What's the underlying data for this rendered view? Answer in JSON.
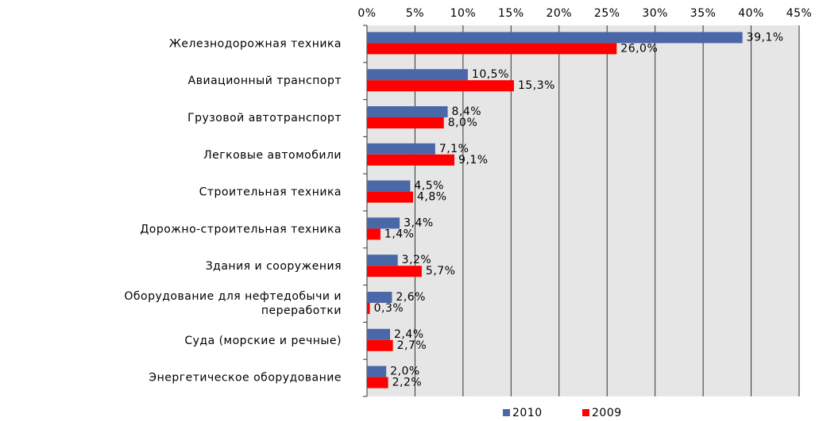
{
  "chart_data": {
    "type": "hbar",
    "categories": [
      "Железнодорожная техника",
      "Авиационный транспорт",
      "Грузовой автотранспорт",
      "Легковые автомобили",
      "Строительная техника",
      "Дорожно-строительная техника",
      "Здания и сооружения",
      "Оборудование для нефтедобычи и\nпереработки",
      "Суда (морские и речные)",
      "Энергетическое оборудование"
    ],
    "series": [
      {
        "name": "2010",
        "color": "#4a67a8",
        "values": [
          39.1,
          10.5,
          8.4,
          7.1,
          4.5,
          3.4,
          3.2,
          2.6,
          2.4,
          2.0
        ],
        "value_labels": [
          "39,1%",
          "10,5%",
          "8,4%",
          "7,1%",
          "4,5%",
          "3,4%",
          "3,2%",
          "2,6%",
          "2,4%",
          "2,0%"
        ]
      },
      {
        "name": "2009",
        "color": "#ff0000",
        "values": [
          26.0,
          15.3,
          8.0,
          9.1,
          4.8,
          1.4,
          5.7,
          0.3,
          2.7,
          2.2
        ],
        "value_labels": [
          "26,0%",
          "15,3%",
          "8,0%",
          "9,1%",
          "4,8%",
          "1,4%",
          "5,7%",
          "0,3%",
          "2,7%",
          "2,2%"
        ]
      }
    ],
    "xlim": [
      0,
      45
    ],
    "xticks": [
      {
        "value": 0,
        "label": "0%"
      },
      {
        "value": 5,
        "label": "5%"
      },
      {
        "value": 10,
        "label": "10%"
      },
      {
        "value": 15,
        "label": "15%"
      },
      {
        "value": 20,
        "label": "20%"
      },
      {
        "value": 25,
        "label": "25%"
      },
      {
        "value": 30,
        "label": "30%"
      },
      {
        "value": 35,
        "label": "35%"
      },
      {
        "value": 40,
        "label": "40%"
      },
      {
        "value": 45,
        "label": "45%"
      }
    ],
    "grid": true,
    "legend": "bottom"
  }
}
